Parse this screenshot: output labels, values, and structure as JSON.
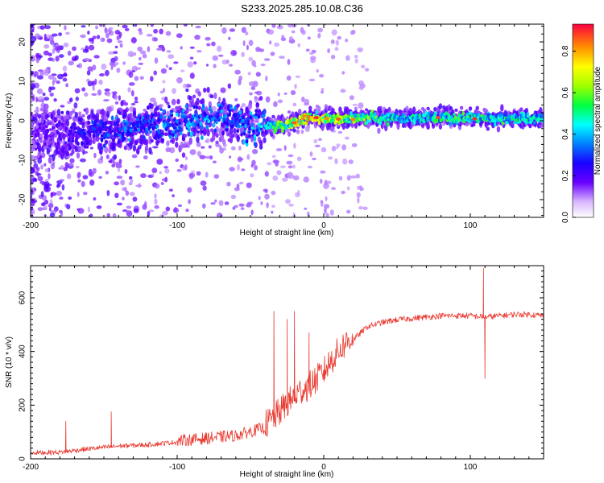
{
  "title": "S233.2025.285.10.08.C36",
  "chart_data": [
    {
      "type": "heatmap",
      "title": "S233.2025.285.10.08.C36",
      "xlabel": "Height of straight line (km)",
      "ylabel": "Frequency (Hz)",
      "xlim": [
        -200,
        150
      ],
      "ylim": [
        -24.5,
        24.5
      ],
      "x_ticks": [
        -200,
        -100,
        0,
        100
      ],
      "y_ticks": [
        -20,
        -10,
        0,
        10,
        20
      ],
      "colorbar": {
        "label": "Normalized spectral amplitude",
        "range": [
          0,
          0.93
        ],
        "ticks": [
          0.0,
          0.2,
          0.4,
          0.6,
          0.8
        ],
        "colormap": "rainbow"
      },
      "ridge": {
        "x": [
          -200,
          -180,
          -160,
          -140,
          -120,
          -100,
          -80,
          -60,
          -40,
          -20,
          -10,
          0,
          20,
          50,
          100,
          150
        ],
        "center_hz": [
          -2.5,
          -2.5,
          -2.5,
          -2.5,
          -1.5,
          0,
          0.5,
          0,
          -1.5,
          -0.5,
          0.8,
          0.6,
          0.6,
          0.7,
          0.8,
          0.5
        ],
        "peak_amplitude": [
          0.15,
          0.2,
          0.3,
          0.35,
          0.35,
          0.4,
          0.4,
          0.35,
          0.45,
          0.75,
          0.8,
          0.7,
          0.65,
          0.5,
          0.55,
          0.5
        ]
      }
    },
    {
      "type": "line",
      "xlabel": "Height of straight line (km)",
      "ylabel": "SNR (10 * v/v)",
      "xlim": [
        -200,
        150
      ],
      "ylim": [
        0,
        720
      ],
      "x_ticks": [
        -200,
        -100,
        0,
        100
      ],
      "y_ticks": [
        0,
        200,
        400,
        600
      ],
      "color": "#e8392f",
      "series": [
        {
          "name": "SNR",
          "x": [
            -200,
            -180,
            -160,
            -140,
            -120,
            -100,
            -80,
            -60,
            -40,
            -35,
            -30,
            -25,
            -20,
            -15,
            -10,
            -5,
            0,
            5,
            10,
            15,
            20,
            25,
            30,
            40,
            50,
            60,
            70,
            80,
            90,
            100,
            110,
            120,
            130,
            140,
            150
          ],
          "y": [
            20,
            22,
            35,
            45,
            50,
            60,
            70,
            80,
            110,
            130,
            160,
            190,
            215,
            240,
            255,
            280,
            310,
            350,
            385,
            415,
            440,
            465,
            490,
            505,
            515,
            520,
            525,
            530,
            530,
            530,
            525,
            530,
            535,
            535,
            530
          ],
          "spikes": [
            {
              "x": -176,
              "y": 140
            },
            {
              "x": -145,
              "y": 175
            },
            {
              "x": -34,
              "y": 550
            },
            {
              "x": -25,
              "y": 520
            },
            {
              "x": -20,
              "y": 550
            },
            {
              "x": -10,
              "y": 470
            },
            {
              "x": 109,
              "y": 710
            },
            {
              "x": 110,
              "y": 300
            }
          ]
        }
      ]
    }
  ]
}
